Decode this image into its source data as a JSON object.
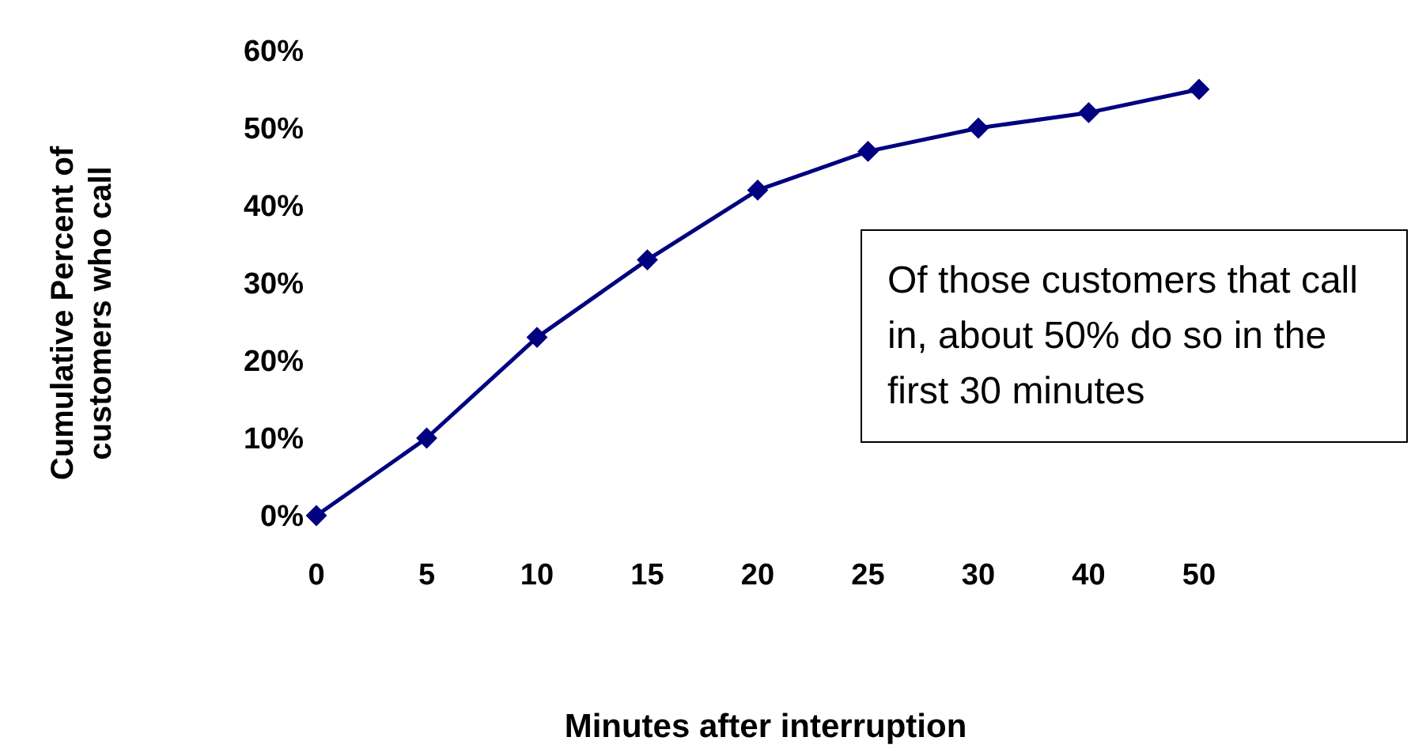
{
  "chart_data": {
    "type": "line",
    "xlabel": "Minutes after interruption",
    "ylabel": "Cumulative Percent of customers  who call",
    "categories": [
      "0",
      "5",
      "10",
      "15",
      "20",
      "25",
      "30",
      "40",
      "50"
    ],
    "series": [
      {
        "color": "#000080",
        "values": [
          0,
          10,
          23,
          33,
          42,
          47,
          50,
          52,
          55
        ]
      }
    ],
    "ylim": [
      0,
      60
    ],
    "yticks": [
      {
        "value": 0,
        "label": "0%"
      },
      {
        "value": 10,
        "label": "10%"
      },
      {
        "value": 20,
        "label": "20%"
      },
      {
        "value": 30,
        "label": "30%"
      },
      {
        "value": 40,
        "label": "40%"
      },
      {
        "value": 50,
        "label": "50%"
      },
      {
        "value": 60,
        "label": "60%"
      }
    ],
    "marker": "diamond",
    "line_style": "solid",
    "grid": false,
    "legend": false,
    "annotations": [
      "Of those customers that call in, about 50% do so in the first 30 minutes"
    ]
  }
}
